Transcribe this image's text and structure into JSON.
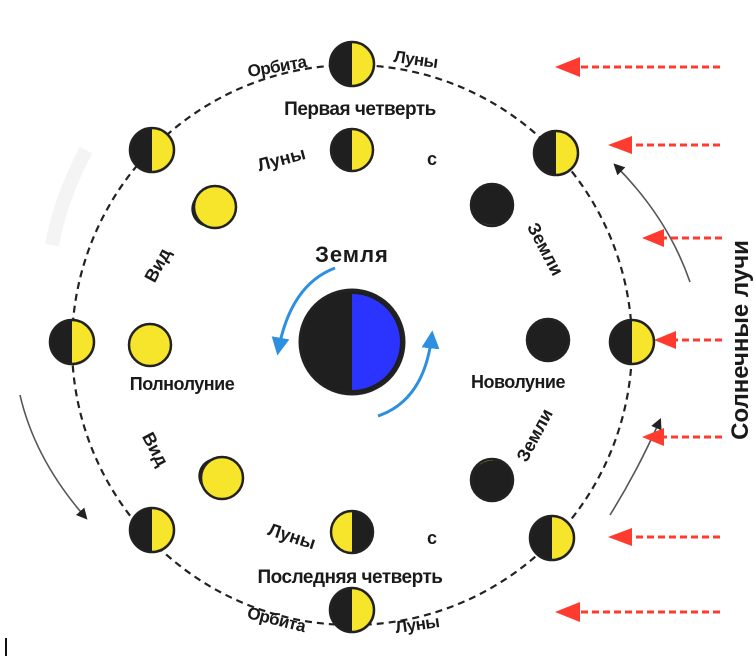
{
  "diagram": {
    "earth_label": "Земля",
    "sun_rays_label": "Солнечные лучи",
    "orbit_top_left": "Орбита",
    "orbit_top_right": "Луны",
    "orbit_bottom_left": "Орбита",
    "orbit_bottom_right": "Луны",
    "first_quarter": "Первая четверть",
    "last_quarter": "Последняя четверть",
    "full_moon": "Полнолуние",
    "new_moon": "Новолуние",
    "view_top_a": "Вид",
    "view_top_b": "Луны",
    "view_top_c": "с",
    "view_top_d": "Земли",
    "view_bottom_a": "Вид",
    "view_bottom_b": "Луны",
    "view_bottom_c": "с",
    "view_bottom_d": "Земли",
    "colors": {
      "moon_lit": "#f7e52b",
      "moon_dark": "#1f1f1f",
      "earth_day": "#2b34ff",
      "earth_night": "#1f1f1f",
      "sun_rays": "#ff3b2f",
      "rotation_arrow": "#2d8fe0"
    }
  }
}
